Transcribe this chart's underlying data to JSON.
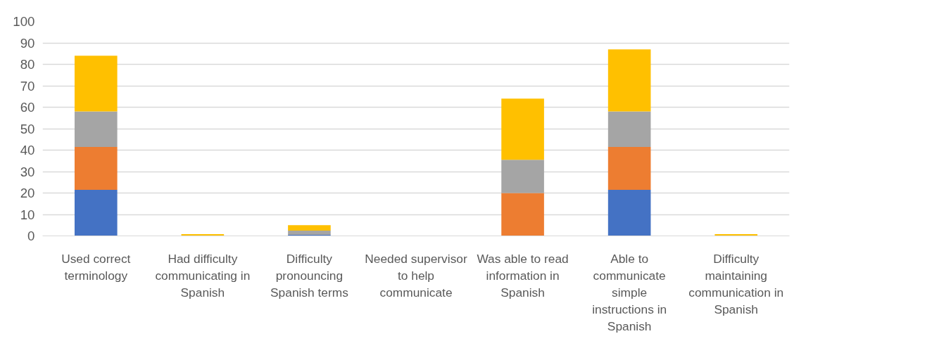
{
  "chart_data": {
    "type": "bar",
    "stacked": true,
    "categories": [
      "Used correct terminology",
      "Had difficulty communicating in Spanish",
      "Difficulty pronouncing Spanish terms",
      "Needed supervisor to help communicate",
      "Was able to read information in Spanish",
      "Able to communicate simple instructions in Spanish",
      "Difficulty maintaining communication in Spanish"
    ],
    "series": [
      {
        "color": "#4472c4",
        "values": [
          21.5,
          0,
          0.5,
          0,
          0,
          21.5,
          0
        ]
      },
      {
        "color": "#ed7d31",
        "values": [
          20,
          0,
          0,
          0,
          20,
          20,
          0
        ]
      },
      {
        "color": "#a5a5a5",
        "values": [
          16.5,
          0,
          2,
          0,
          15.5,
          16.5,
          0
        ]
      },
      {
        "color": "#ffc000",
        "values": [
          26,
          0.8,
          2.5,
          0,
          28.5,
          29,
          0.8
        ]
      }
    ],
    "ylim": [
      0,
      100
    ],
    "yticks": [
      0,
      10,
      20,
      30,
      40,
      50,
      60,
      70,
      80,
      90,
      100
    ],
    "grid": "y"
  }
}
